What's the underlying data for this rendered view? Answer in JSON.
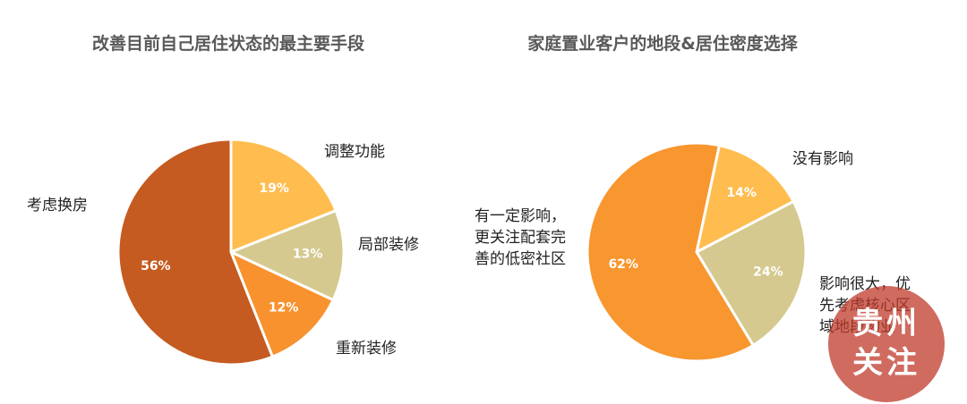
{
  "chart_data": [
    {
      "type": "pie",
      "title": "改善目前自己居住状态的最主要手段",
      "categories": [
        "调整功能",
        "局部装修",
        "重新装修",
        "考虑换房"
      ],
      "values": [
        19,
        13,
        12,
        56
      ],
      "value_labels": [
        "19%",
        "13%",
        "12%",
        "56%"
      ],
      "colors": [
        "#ffbd4f",
        "#d5c98f",
        "#f8922f",
        "#c55b20"
      ]
    },
    {
      "type": "pie",
      "title": "家庭置业客户的地段&居住密度选择",
      "categories": [
        "没有影响",
        "影响很大，优\n先考虑核心区\n域地段物业",
        "有一定影响，\n更关注配套完\n善的低密社区"
      ],
      "values": [
        14,
        24,
        62
      ],
      "value_labels": [
        "14%",
        "24%",
        "62%"
      ],
      "colors": [
        "#ffbd4f",
        "#d5c98f",
        "#f8962f"
      ]
    }
  ],
  "watermark": "贵州\n关注"
}
